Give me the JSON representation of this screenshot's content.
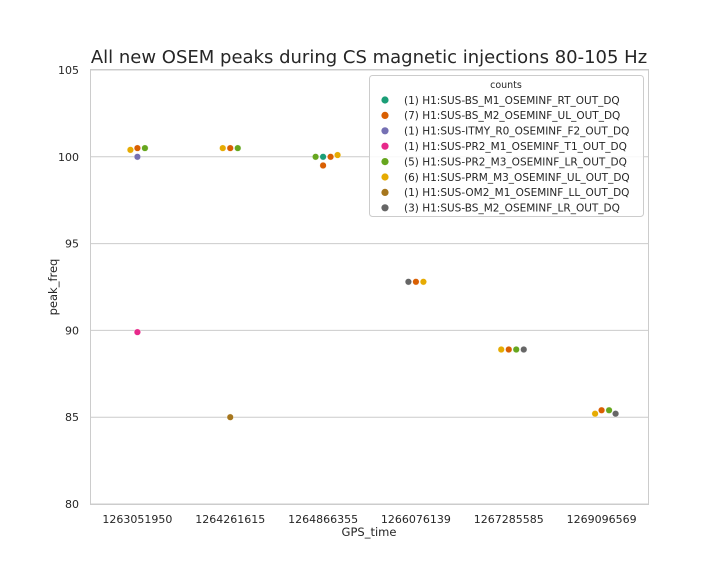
{
  "chart_data": {
    "type": "scatter",
    "title": "All new OSEM peaks during CS magnetic injections 80-105 Hz",
    "xlabel": "GPS_time",
    "ylabel": "peak_freq",
    "categories": [
      "1263051950",
      "1264261615",
      "1264866355",
      "1266076139",
      "1267285585",
      "1269096569"
    ],
    "ylim": [
      80,
      105
    ],
    "yticks": [
      80,
      85,
      90,
      95,
      100,
      105
    ],
    "grid": "horizontal",
    "legend": {
      "title": "counts",
      "placement": "top-right"
    },
    "series": [
      {
        "name": "(1) H1:SUS-BS_M1_OSEMINF_RT_OUT_DQ",
        "color": "#1b9e77",
        "points": [
          {
            "x": "1264866355",
            "y": 100.0
          }
        ]
      },
      {
        "name": "(7) H1:SUS-BS_M2_OSEMINF_UL_OUT_DQ",
        "color": "#d95f02",
        "points": [
          {
            "x": "1263051950",
            "y": 100.5
          },
          {
            "x": "1264261615",
            "y": 100.5
          },
          {
            "x": "1264866355",
            "y": 100.0
          },
          {
            "x": "1264866355",
            "y": 99.5
          },
          {
            "x": "1266076139",
            "y": 92.8
          },
          {
            "x": "1267285585",
            "y": 88.9
          },
          {
            "x": "1269096569",
            "y": 85.4
          }
        ]
      },
      {
        "name": "(1) H1:SUS-ITMY_R0_OSEMINF_F2_OUT_DQ",
        "color": "#7570b3",
        "points": [
          {
            "x": "1263051950",
            "y": 100.0
          }
        ]
      },
      {
        "name": "(1) H1:SUS-PR2_M1_OSEMINF_T1_OUT_DQ",
        "color": "#e7298a",
        "points": [
          {
            "x": "1263051950",
            "y": 89.9
          }
        ]
      },
      {
        "name": "(5) H1:SUS-PR2_M3_OSEMINF_LR_OUT_DQ",
        "color": "#66a61e",
        "points": [
          {
            "x": "1263051950",
            "y": 100.5
          },
          {
            "x": "1264261615",
            "y": 100.5
          },
          {
            "x": "1264866355",
            "y": 100.0
          },
          {
            "x": "1267285585",
            "y": 88.9
          },
          {
            "x": "1269096569",
            "y": 85.4
          }
        ]
      },
      {
        "name": "(6) H1:SUS-PRM_M3_OSEMINF_UL_OUT_DQ",
        "color": "#e6ab02",
        "points": [
          {
            "x": "1263051950",
            "y": 100.4
          },
          {
            "x": "1264261615",
            "y": 100.5
          },
          {
            "x": "1264866355",
            "y": 100.1
          },
          {
            "x": "1266076139",
            "y": 92.8
          },
          {
            "x": "1267285585",
            "y": 88.9
          },
          {
            "x": "1269096569",
            "y": 85.2
          }
        ]
      },
      {
        "name": "(1) H1:SUS-OM2_M1_OSEMINF_LL_OUT_DQ",
        "color": "#a6761d",
        "points": [
          {
            "x": "1264261615",
            "y": 85.0
          }
        ]
      },
      {
        "name": "(3) H1:SUS-BS_M2_OSEMINF_LR_OUT_DQ",
        "color": "#666666",
        "points": [
          {
            "x": "1266076139",
            "y": 92.8
          },
          {
            "x": "1267285585",
            "y": 88.9
          },
          {
            "x": "1269096569",
            "y": 85.2
          }
        ]
      }
    ]
  }
}
